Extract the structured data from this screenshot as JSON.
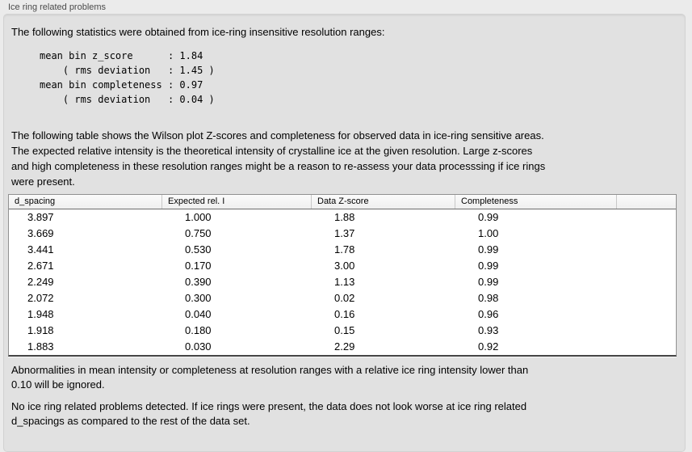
{
  "panel": {
    "title": "Ice ring related problems"
  },
  "intro": "The following statistics were obtained from ice-ring insensitive resolution ranges:",
  "stats": {
    "lines": [
      "mean bin z_score      : 1.84",
      "    ( rms deviation   : 1.45 )",
      "mean bin completeness : 0.97",
      "    ( rms deviation   : 0.04 )"
    ],
    "mean_bin_z_score": "1.84",
    "z_score_rms_deviation": "1.45",
    "mean_bin_completeness": "0.97",
    "completeness_rms_deviation": "0.04"
  },
  "table_description": {
    "lines": [
      "The following table shows the Wilson plot Z-scores and completeness for observed data in ice-ring sensitive areas.",
      "The expected relative intensity is the theoretical intensity of crystalline ice at the given resolution. Large z-scores",
      "and high completeness in these resolution ranges might be a reason to re-assess your data processsing if ice rings",
      "were present."
    ]
  },
  "table": {
    "columns": [
      "d_spacing",
      "Expected rel. I",
      "Data Z-score",
      "Completeness"
    ],
    "rows": [
      [
        "3.897",
        "1.000",
        "1.88",
        "0.99"
      ],
      [
        "3.669",
        "0.750",
        "1.37",
        "1.00"
      ],
      [
        "3.441",
        "0.530",
        "1.78",
        "0.99"
      ],
      [
        "2.671",
        "0.170",
        "3.00",
        "0.99"
      ],
      [
        "2.249",
        "0.390",
        "1.13",
        "0.99"
      ],
      [
        "2.072",
        "0.300",
        "0.02",
        "0.98"
      ],
      [
        "1.948",
        "0.040",
        "0.16",
        "0.96"
      ],
      [
        "1.918",
        "0.180",
        "0.15",
        "0.93"
      ],
      [
        "1.883",
        "0.030",
        "2.29",
        "0.92"
      ]
    ]
  },
  "notes": {
    "ignore_threshold": {
      "lines": [
        "Abnormalities in mean intensity or completeness at resolution ranges with a relative ice ring intensity lower than",
        "0.10 will be ignored."
      ]
    },
    "conclusion": {
      "lines": [
        "No ice ring related problems detected. If ice rings were present, the data does not look worse at ice ring related",
        "d_spacings as compared to the rest of the data set."
      ]
    }
  }
}
